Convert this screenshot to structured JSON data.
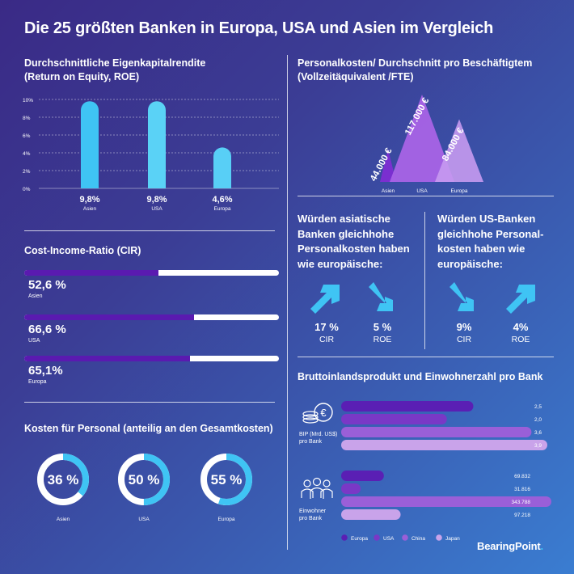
{
  "title": "Die 25 größten Banken in Europa, USA und Asien im Vergleich",
  "colors": {
    "europa": "#5a1fb4",
    "usa": "#7a38c6",
    "china": "#9a5fd8",
    "japan": "#c9a3ea",
    "cyan": "#3fc4f4",
    "purple": "#6a2bc4"
  },
  "roe": {
    "title_line1": "Durchschnittliche Eigenkapitalrendite",
    "title_line2": "(Return on Equity, ROE)",
    "ticks": [
      "10%",
      "8%",
      "6%",
      "4%",
      "2%",
      "0%"
    ],
    "labels": [
      "9,8%",
      "9,8%",
      "4,6%"
    ],
    "regions": [
      "Asien",
      "USA",
      "Europa"
    ]
  },
  "cir": {
    "title": "Cost-Income-Ratio (CIR)",
    "items": [
      {
        "value_label": "52,6 %",
        "region": "Asien"
      },
      {
        "value_label": "66,6 %",
        "region": "USA"
      },
      {
        "value_label": "65,1%",
        "region": "Europa"
      }
    ]
  },
  "personal_share": {
    "title": "Kosten für Personal (anteilig an den Gesamtkosten)",
    "items": [
      {
        "label": "36 %",
        "region": "Asien"
      },
      {
        "label": "50 %",
        "region": "USA"
      },
      {
        "label": "55 %",
        "region": "Europa"
      }
    ]
  },
  "fte": {
    "title_line1": "Personalkosten/ Durchschnitt pro Beschäftigtem",
    "title_line2": "(Vollzeitäquivalent /FTE)",
    "labels": [
      "44.000 €",
      "117.000 €",
      "84.000 €"
    ],
    "regions": [
      "Asien",
      "USA",
      "Europa"
    ]
  },
  "scenario_asia": {
    "text": [
      "Würden asiatische",
      "Banken gleichhohe",
      "Personalkosten haben",
      "wie europäische:"
    ],
    "cir_value": "17 %",
    "cir_label": "CIR",
    "roe_value": "5 %",
    "roe_label": "ROE"
  },
  "scenario_us": {
    "text": [
      "Würden US-Banken",
      "gleichhohe Personal-",
      "kosten haben wie",
      "europäische:"
    ],
    "cir_value": "9%",
    "cir_label": "CIR",
    "roe_value": "4%",
    "roe_label": "ROE"
  },
  "gdp": {
    "title": "Bruttoinlandsprodukt und Einwohnerzahl pro Bank",
    "bip_label": [
      "BIP (Mrd. US$)",
      "pro Bank"
    ],
    "einw_label": [
      "Einwohner",
      "pro Bank"
    ],
    "bip_labels": [
      "2,5",
      "2,0",
      "3,6",
      "3,9"
    ],
    "einw_labels": [
      "69.832",
      "31.816",
      "343.788",
      "97.218"
    ],
    "legend": [
      "Europa",
      "USA",
      "China",
      "Japan"
    ]
  },
  "brand": "BearingPoint",
  "chart_data": [
    {
      "type": "bar",
      "title": "Durchschnittliche Eigenkapitalrendite (Return on Equity, ROE)",
      "categories": [
        "Asien",
        "USA",
        "Europa"
      ],
      "values": [
        9.8,
        9.8,
        4.6
      ],
      "ylim": [
        0,
        10
      ],
      "unit": "%",
      "grid": true
    },
    {
      "type": "bar",
      "title": "Cost-Income-Ratio (CIR)",
      "categories": [
        "Asien",
        "USA",
        "Europa"
      ],
      "values": [
        52.6,
        66.6,
        65.1
      ],
      "unit": "%"
    },
    {
      "type": "pie",
      "title": "Kosten für Personal (anteilig an den Gesamtkosten)",
      "categories": [
        "Asien",
        "USA",
        "Europa"
      ],
      "values": [
        36,
        50,
        55
      ],
      "unit": "%"
    },
    {
      "type": "area",
      "title": "Personalkosten/ Durchschnitt pro Beschäftigtem (Vollzeitäquivalent /FTE)",
      "categories": [
        "Asien",
        "USA",
        "Europa"
      ],
      "values": [
        44000,
        117000,
        84000
      ],
      "unit": "€"
    },
    {
      "type": "bar",
      "title": "Bruttoinlandsprodukt und Einwohnerzahl pro Bank",
      "categories": [
        "BIP (Mrd. US$) pro Bank",
        "Einwohner pro Bank"
      ],
      "series": [
        {
          "name": "Europa",
          "values": [
            2.5,
            69832
          ]
        },
        {
          "name": "USA",
          "values": [
            2.0,
            31816
          ]
        },
        {
          "name": "China",
          "values": [
            3.6,
            343788
          ]
        },
        {
          "name": "Japan",
          "values": [
            3.9,
            97218
          ]
        }
      ]
    }
  ]
}
